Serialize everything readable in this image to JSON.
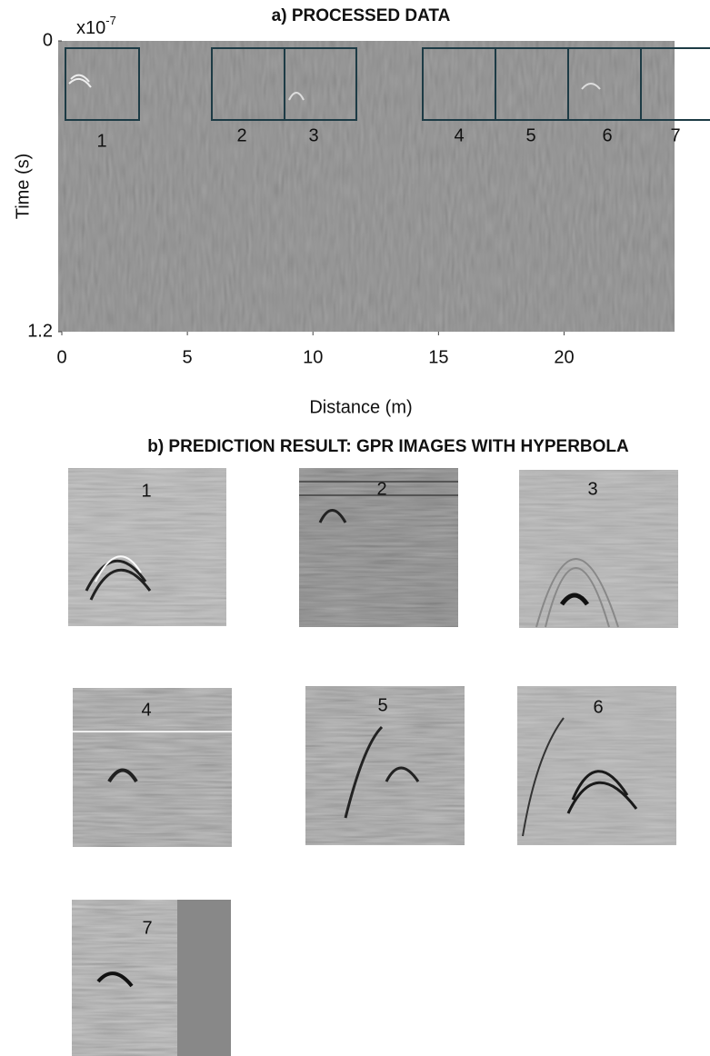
{
  "panel_a": {
    "title": "a) PROCESSED DATA",
    "x_label": "Distance (m)",
    "y_label": "Time (s)",
    "y_scale_base": "x10",
    "y_scale_exponent": "-7",
    "xlim": [
      0,
      24.4
    ],
    "xticks": [
      0,
      5,
      10,
      15,
      20
    ],
    "ylim": [
      0,
      1.2
    ],
    "yticks": [
      0,
      1.2
    ],
    "windows": [
      "1",
      "2",
      "3",
      "4",
      "5",
      "6",
      "7"
    ]
  },
  "panel_b": {
    "title": "b) PREDICTION RESULT: GPR IMAGES WITH HYPERBOLA",
    "images": [
      {
        "label": "1"
      },
      {
        "label": "2"
      },
      {
        "label": "3"
      },
      {
        "label": "4"
      },
      {
        "label": "5"
      },
      {
        "label": "6"
      },
      {
        "label": "7"
      }
    ]
  }
}
